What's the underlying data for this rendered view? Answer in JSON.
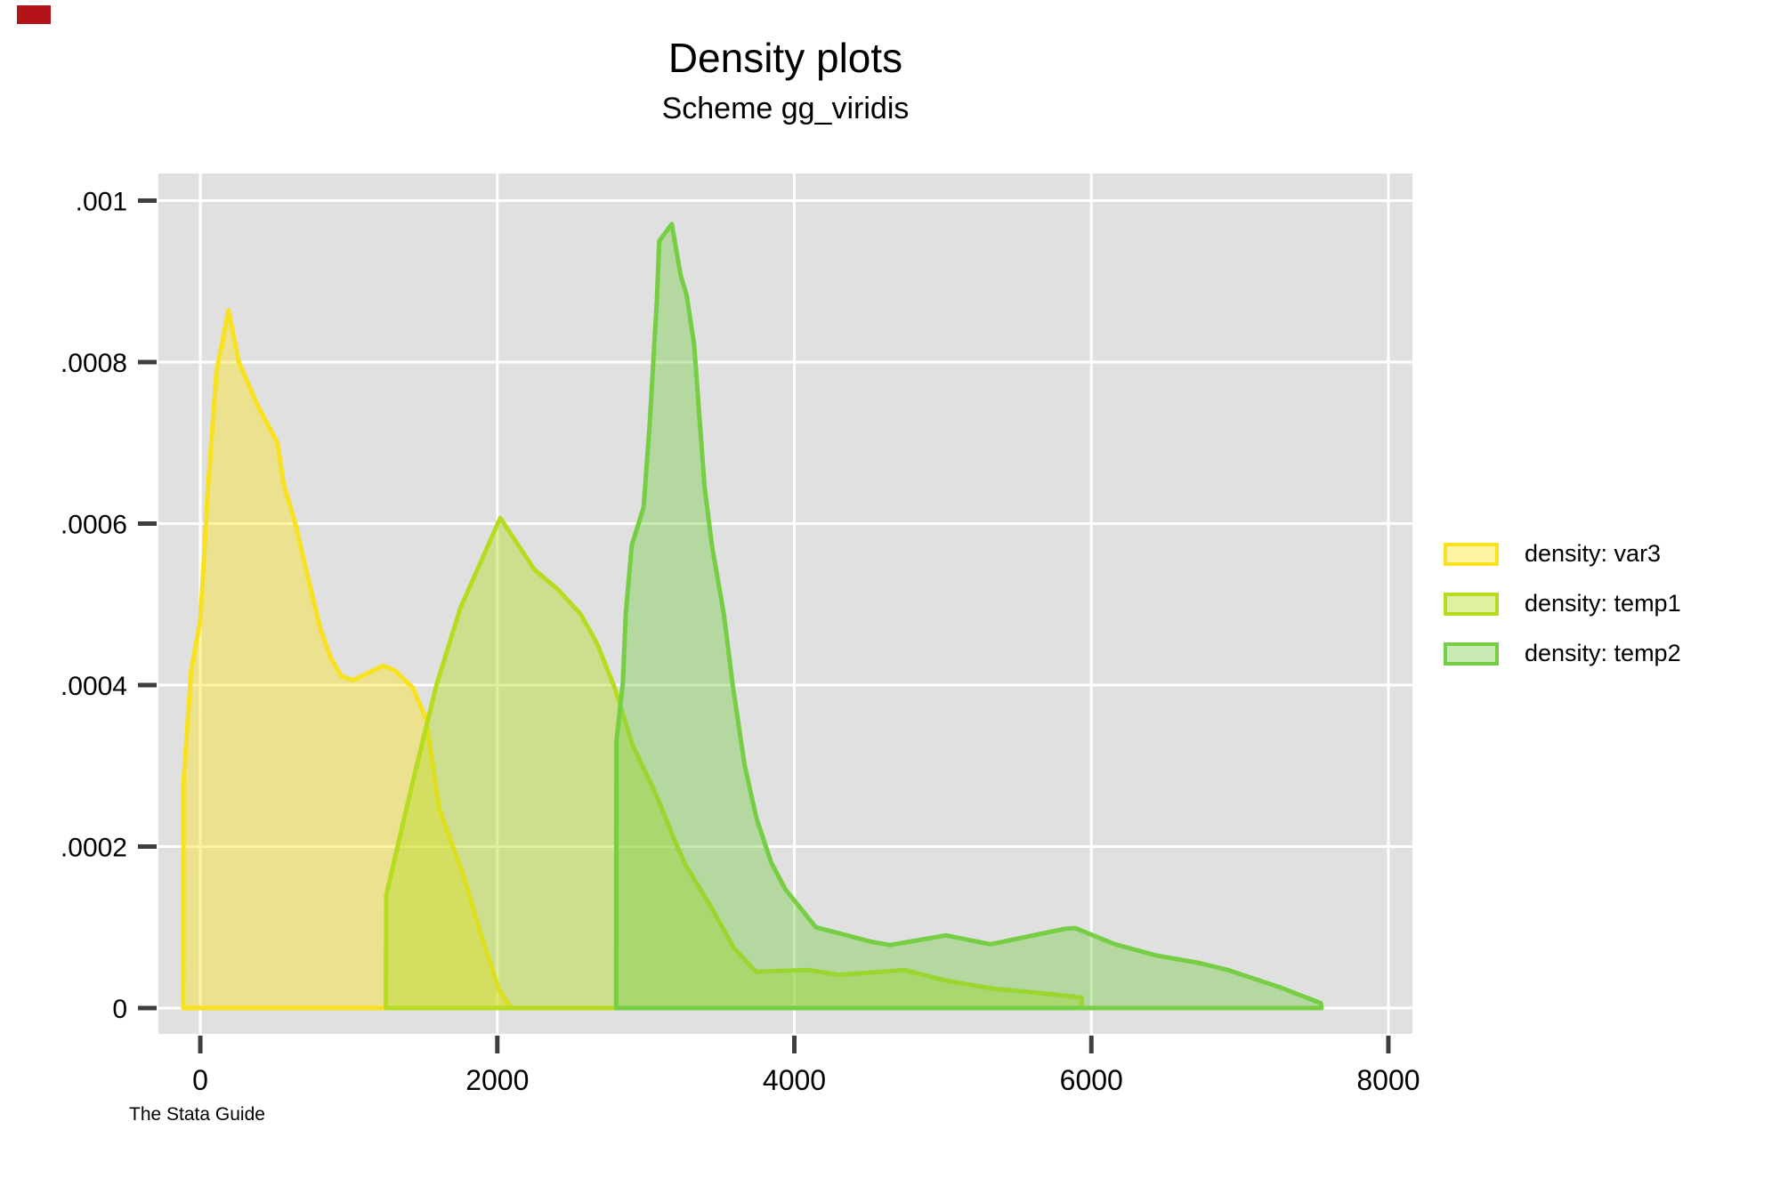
{
  "header": {
    "title": "Density plots",
    "subtitle": "Scheme gg_viridis"
  },
  "footer": {
    "note": "The Stata Guide"
  },
  "legend": {
    "items": [
      {
        "label": "density: var3"
      },
      {
        "label": "density: temp1"
      },
      {
        "label": "density: temp2"
      }
    ]
  },
  "chart_data": {
    "type": "area",
    "title": "Density plots",
    "subtitle": "Scheme gg_viridis",
    "xlabel": "",
    "ylabel": "",
    "grid": true,
    "legend_position": "right-outside",
    "xlim": [
      -282,
      8162
    ],
    "ylim": [
      -3.2e-05,
      0.0010336
    ],
    "x_ticks": {
      "values": [
        0,
        2000,
        4000,
        6000,
        8000
      ],
      "labels": [
        "0",
        "2000",
        "4000",
        "6000",
        "8000"
      ]
    },
    "y_ticks": {
      "values": [
        0,
        0.0002,
        0.0004,
        0.0006,
        0.0008,
        0.001
      ],
      "labels": [
        "0",
        ".0002",
        ".0004",
        ".0006",
        ".0008",
        ".001"
      ]
    },
    "theme": {
      "plot_bg": "#e0e0e0",
      "grid": "#ffffff",
      "tick": "#3e3e3e",
      "text": "#000000"
    },
    "series": [
      {
        "name": "density: var3",
        "stroke": "#f8e11e",
        "fill": "rgba(250,227,30,0.42)",
        "points": [
          [
            -115,
            0
          ],
          [
            -113,
            0.00028
          ],
          [
            -60,
            0.00042
          ],
          [
            0,
            0.00048
          ],
          [
            50,
            0.00064
          ],
          [
            110,
            0.00079
          ],
          [
            190,
            0.000864
          ],
          [
            260,
            0.0008
          ],
          [
            390,
            0.000745
          ],
          [
            520,
            0.0007
          ],
          [
            560,
            0.00065
          ],
          [
            640,
            0.0006
          ],
          [
            730,
            0.000529
          ],
          [
            810,
            0.000469
          ],
          [
            880,
            0.000433
          ],
          [
            950,
            0.000411
          ],
          [
            1030,
            0.000406
          ],
          [
            1230,
            0.000424
          ],
          [
            1310,
            0.000418
          ],
          [
            1430,
            0.000397
          ],
          [
            1520,
            0.000358
          ],
          [
            1610,
            0.000246
          ],
          [
            1770,
            0.000165
          ],
          [
            1890,
            9.1e-05
          ],
          [
            2010,
            2.3e-05
          ],
          [
            2090,
            0
          ]
        ]
      },
      {
        "name": "density: temp1",
        "stroke": "#b6dc20",
        "fill": "rgba(182,220,32,0.42)",
        "points": [
          [
            1250,
            0
          ],
          [
            1252,
            0.00014
          ],
          [
            1430,
            0.00028
          ],
          [
            1590,
            0.0004
          ],
          [
            1750,
            0.000495
          ],
          [
            2020,
            0.000607
          ],
          [
            2250,
            0.000543
          ],
          [
            2410,
            0.000518
          ],
          [
            2560,
            0.000488
          ],
          [
            2670,
            0.000452
          ],
          [
            2790,
            0.000397
          ],
          [
            2910,
            0.000326
          ],
          [
            3070,
            0.000264
          ],
          [
            3200,
            0.000205
          ],
          [
            3270,
            0.000176
          ],
          [
            3440,
            0.000125
          ],
          [
            3590,
            7.5e-05
          ],
          [
            3740,
            4.5e-05
          ],
          [
            4100,
            4.7e-05
          ],
          [
            4300,
            4.1e-05
          ],
          [
            4740,
            4.7e-05
          ],
          [
            5020,
            3.4e-05
          ],
          [
            5340,
            2.4e-05
          ],
          [
            5740,
            1.7e-05
          ],
          [
            5935,
            1.3e-05
          ],
          [
            5935,
            0
          ]
        ]
      },
      {
        "name": "density: temp2",
        "stroke": "#76ce44",
        "fill": "rgba(118,206,68,0.42)",
        "points": [
          [
            2800,
            0
          ],
          [
            2802,
            0.00033
          ],
          [
            2845,
            0.000403
          ],
          [
            2865,
            0.000488
          ],
          [
            2905,
            0.000573
          ],
          [
            2985,
            0.00062
          ],
          [
            3025,
            0.00072
          ],
          [
            3075,
            0.00088
          ],
          [
            3090,
            0.00095
          ],
          [
            3175,
            0.000971
          ],
          [
            3235,
            0.000907
          ],
          [
            3275,
            0.000883
          ],
          [
            3325,
            0.000822
          ],
          [
            3395,
            0.000646
          ],
          [
            3445,
            0.000573
          ],
          [
            3525,
            0.000488
          ],
          [
            3585,
            0.0004
          ],
          [
            3665,
            0.000301
          ],
          [
            3745,
            0.000235
          ],
          [
            3845,
            0.00018
          ],
          [
            3940,
            0.000147
          ],
          [
            4145,
            0.0001
          ],
          [
            4520,
            8.2e-05
          ],
          [
            4645,
            7.8e-05
          ],
          [
            5020,
            9e-05
          ],
          [
            5320,
            7.9e-05
          ],
          [
            5820,
            9.8e-05
          ],
          [
            5890,
            9.9e-05
          ],
          [
            6160,
            7.9e-05
          ],
          [
            6440,
            6.5e-05
          ],
          [
            6720,
            5.6e-05
          ],
          [
            6920,
            4.7e-05
          ],
          [
            7280,
            2.5e-05
          ],
          [
            7545,
            6e-06
          ],
          [
            7550,
            0
          ]
        ]
      }
    ]
  }
}
